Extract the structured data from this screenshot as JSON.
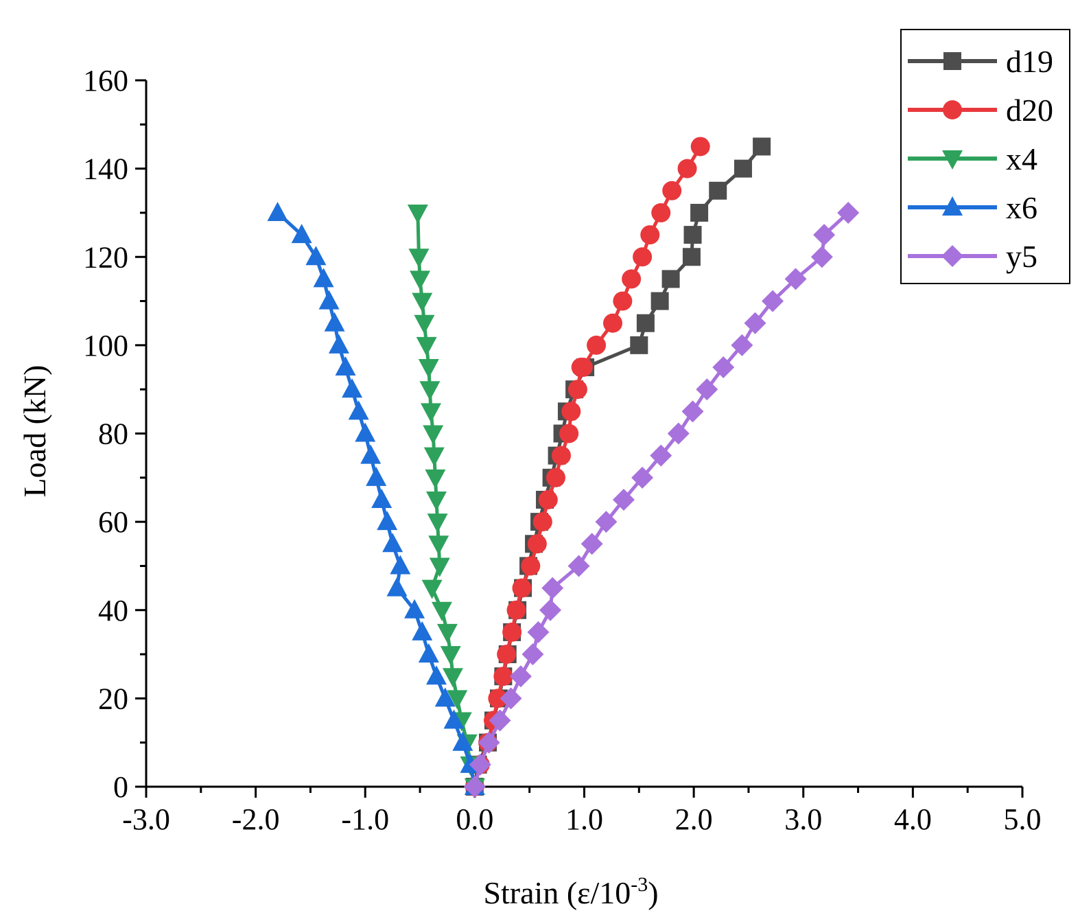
{
  "chart_data": {
    "type": "line",
    "title": "",
    "xlabel": "Strain  (ε/10",
    "xlabel_sup": "-3",
    "xlabel_end": ")",
    "ylabel": "Load  (kN)",
    "xlim": [
      -3.0,
      5.0
    ],
    "ylim": [
      0,
      160
    ],
    "xticks": [
      -3.0,
      -2.0,
      -1.0,
      0.0,
      1.0,
      2.0,
      3.0,
      4.0,
      5.0
    ],
    "xtick_labels": [
      "-3.0",
      "-2.0",
      "-1.0",
      "0.0",
      "1.0",
      "2.0",
      "3.0",
      "4.0",
      "5.0"
    ],
    "yticks": [
      0,
      20,
      40,
      60,
      80,
      100,
      120,
      140,
      160
    ],
    "ytick_labels": [
      "0",
      "20",
      "40",
      "60",
      "80",
      "100",
      "120",
      "140",
      "160"
    ],
    "legend_position": "top-right",
    "grid": false,
    "series": [
      {
        "name": "d19",
        "color": "#4d4d4d",
        "marker": "square",
        "x": [
          0.0,
          0.03,
          0.12,
          0.17,
          0.22,
          0.26,
          0.3,
          0.34,
          0.39,
          0.44,
          0.49,
          0.54,
          0.59,
          0.64,
          0.7,
          0.75,
          0.8,
          0.84,
          0.91,
          1.01,
          1.5,
          1.56,
          1.69,
          1.79,
          1.98,
          1.99,
          2.05,
          2.22,
          2.45,
          2.62
        ],
        "y": [
          0,
          5,
          10,
          15,
          20,
          25,
          30,
          35,
          40,
          45,
          50,
          55,
          60,
          65,
          70,
          75,
          80,
          85,
          90,
          95,
          100,
          105,
          110,
          115,
          120,
          125,
          130,
          135,
          140,
          145
        ]
      },
      {
        "name": "d20",
        "color": "#e8383c",
        "marker": "circle",
        "x": [
          0.0,
          0.05,
          0.12,
          0.17,
          0.21,
          0.26,
          0.29,
          0.34,
          0.38,
          0.43,
          0.51,
          0.57,
          0.62,
          0.67,
          0.74,
          0.79,
          0.86,
          0.88,
          0.94,
          0.97,
          0.99,
          1.11,
          1.26,
          1.35,
          1.43,
          1.53,
          1.6,
          1.7,
          1.8,
          1.94,
          2.06
        ],
        "y": [
          0,
          5,
          10,
          15,
          20,
          25,
          30,
          35,
          40,
          45,
          50,
          55,
          60,
          65,
          70,
          75,
          80,
          85,
          90,
          95,
          95,
          100,
          105,
          110,
          115,
          120,
          125,
          130,
          135,
          140,
          145
        ]
      },
      {
        "name": "x4",
        "color": "#2ea25c",
        "marker": "triangle-down",
        "x": [
          0.0,
          -0.02,
          -0.06,
          -0.11,
          -0.15,
          -0.18,
          -0.22,
          -0.26,
          -0.39,
          -0.31,
          -0.33,
          -0.34,
          -0.35,
          -0.37,
          -0.37,
          -0.38,
          -0.4,
          -0.41,
          -0.42,
          -0.44,
          -0.45,
          -0.46,
          -0.47,
          -0.5,
          -0.51,
          -0.52
        ],
        "y": [
          0,
          5,
          10,
          15,
          20,
          25,
          30,
          35,
          45,
          40,
          45,
          50,
          55,
          60,
          65,
          70,
          75,
          80,
          85,
          90,
          95,
          100,
          105,
          110,
          115,
          120
        ],
        "x_clean": [
          0.0,
          -0.04,
          -0.07,
          -0.12,
          -0.16,
          -0.2,
          -0.22,
          -0.25,
          -0.3,
          -0.39,
          -0.32,
          -0.33,
          -0.34,
          -0.35,
          -0.36,
          -0.37,
          -0.38,
          -0.4,
          -0.41,
          -0.42,
          -0.44,
          -0.46,
          -0.48,
          -0.5,
          -0.51,
          -0.52
        ],
        "y_clean": [
          0,
          5,
          10,
          15,
          20,
          25,
          30,
          35,
          40,
          45,
          50,
          55,
          60,
          65,
          70,
          75,
          80,
          85,
          90,
          95,
          100,
          105,
          110,
          115,
          120,
          130
        ]
      },
      {
        "name": "x6",
        "color": "#1e6fd9",
        "marker": "triangle-up",
        "x": [
          0.0,
          -0.04,
          -0.11,
          -0.19,
          -0.27,
          -0.35,
          -0.42,
          -0.48,
          -0.55,
          -0.71,
          -0.68,
          -0.75,
          -0.8,
          -0.85,
          -0.9,
          -0.95,
          -1.0,
          -1.06,
          -1.12,
          -1.18,
          -1.24,
          -1.28,
          -1.33,
          -1.38,
          -1.45,
          -1.58,
          -1.8
        ],
        "y": [
          0,
          5,
          10,
          15,
          20,
          25,
          30,
          35,
          40,
          45,
          50,
          55,
          60,
          65,
          70,
          75,
          80,
          85,
          90,
          95,
          100,
          105,
          110,
          115,
          120,
          125,
          130
        ]
      },
      {
        "name": "y5",
        "color": "#a872dc",
        "marker": "diamond",
        "x": [
          0.0,
          0.05,
          0.13,
          0.23,
          0.33,
          0.42,
          0.53,
          0.58,
          0.69,
          0.71,
          0.95,
          1.07,
          1.2,
          1.36,
          1.53,
          1.7,
          1.86,
          1.99,
          2.12,
          2.27,
          2.44,
          2.56,
          2.72,
          2.93,
          3.17,
          3.19,
          3.41
        ],
        "y": [
          0,
          5,
          10,
          15,
          20,
          25,
          30,
          35,
          40,
          45,
          50,
          55,
          60,
          65,
          70,
          75,
          80,
          85,
          90,
          95,
          100,
          105,
          110,
          115,
          120,
          125,
          130
        ]
      }
    ]
  }
}
